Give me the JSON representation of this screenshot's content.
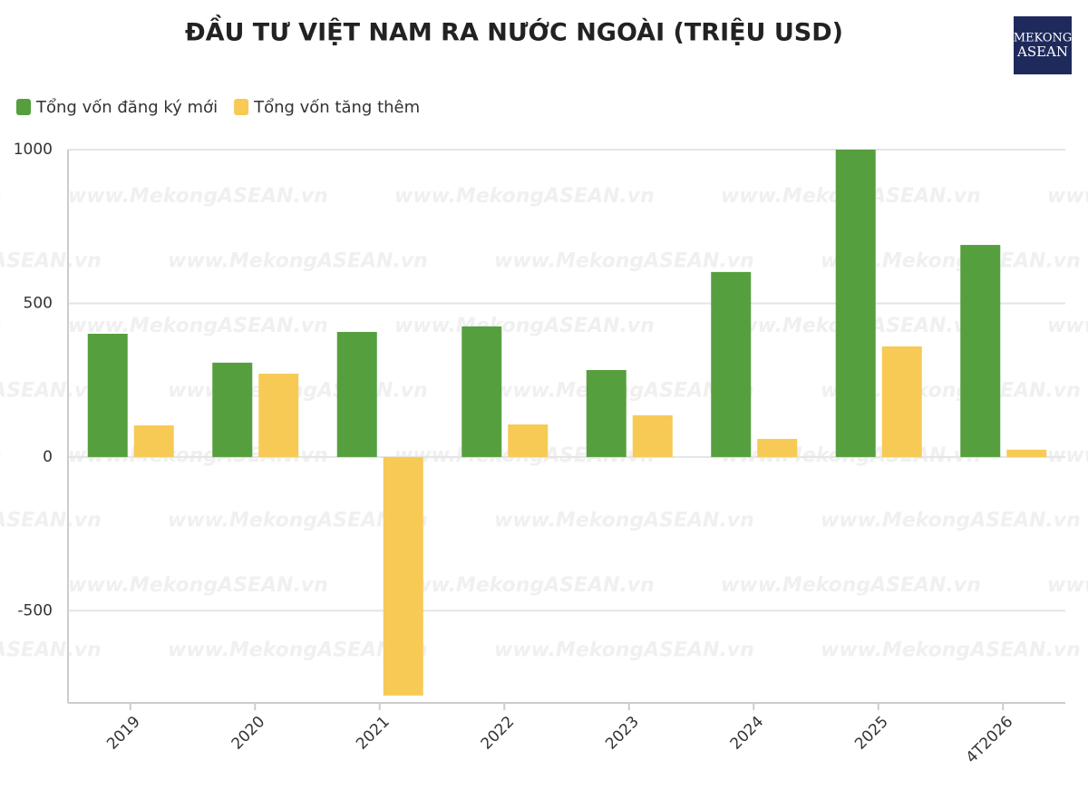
{
  "logo": {
    "line1": "MEKONG",
    "line2": "ASEAN"
  },
  "watermark": "www.MekongASEAN.vn",
  "chart_data": {
    "type": "bar",
    "title": "ĐẦU TƯ VIỆT NAM RA NƯỚC NGOÀI (TRIỆU USD)",
    "categories": [
      "2019",
      "2020",
      "2021",
      "2022",
      "2023",
      "2024",
      "2025",
      "4T2026"
    ],
    "series": [
      {
        "name": "Tổng vốn đăng ký mới",
        "color": "#569f3e",
        "values": [
          401,
          307,
          407,
          425,
          283,
          602,
          1000,
          690
        ]
      },
      {
        "name": "Tổng vốn tăng thêm",
        "color": "#f7ca55",
        "values": [
          103,
          271,
          -776,
          106,
          136,
          59,
          360,
          24
        ]
      }
    ],
    "ylim": [
      -800,
      1000
    ],
    "yticks": [
      -500,
      0,
      500,
      1000
    ],
    "grid": true,
    "legend": "top-left"
  }
}
